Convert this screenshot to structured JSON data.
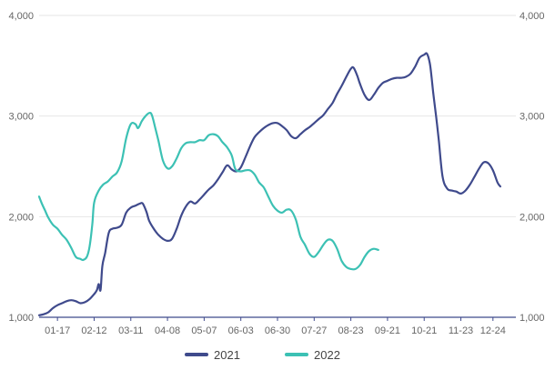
{
  "chart_data": {
    "type": "line",
    "title": "",
    "xlabel": "",
    "ylabel": "",
    "ylim": [
      1000,
      4000
    ],
    "xlim": [
      0,
      52
    ],
    "y_ticks": [
      1000,
      2000,
      3000,
      4000
    ],
    "y_tick_labels": [
      "1,000",
      "2,000",
      "3,000",
      "4,000"
    ],
    "x_ticks": [
      {
        "x": 2,
        "label": "01-17"
      },
      {
        "x": 6,
        "label": "02-12"
      },
      {
        "x": 10,
        "label": "03-11"
      },
      {
        "x": 14,
        "label": "04-08"
      },
      {
        "x": 18,
        "label": "05-07"
      },
      {
        "x": 22,
        "label": "06-03"
      },
      {
        "x": 26,
        "label": "06-30"
      },
      {
        "x": 30,
        "label": "07-27"
      },
      {
        "x": 34,
        "label": "08-23"
      },
      {
        "x": 38,
        "label": "09-21"
      },
      {
        "x": 42,
        "label": "10-21"
      },
      {
        "x": 46,
        "label": "11-23"
      },
      {
        "x": 49.5,
        "label": "12-24"
      }
    ],
    "grid": true,
    "legend_position": "bottom",
    "dual_y_axis": true,
    "series": [
      {
        "name": "2021",
        "color": "#3f4a8c",
        "points": [
          [
            0,
            1020
          ],
          [
            0.5,
            1030
          ],
          [
            1,
            1050
          ],
          [
            1.5,
            1090
          ],
          [
            2,
            1120
          ],
          [
            2.5,
            1140
          ],
          [
            3,
            1160
          ],
          [
            3.5,
            1170
          ],
          [
            4,
            1160
          ],
          [
            4.5,
            1140
          ],
          [
            5,
            1150
          ],
          [
            5.5,
            1180
          ],
          [
            6,
            1230
          ],
          [
            6.3,
            1270
          ],
          [
            6.5,
            1330
          ],
          [
            6.7,
            1270
          ],
          [
            6.9,
            1510
          ],
          [
            7.2,
            1640
          ],
          [
            7.6,
            1840
          ],
          [
            8,
            1880
          ],
          [
            8.5,
            1890
          ],
          [
            9,
            1920
          ],
          [
            9.5,
            2040
          ],
          [
            10,
            2090
          ],
          [
            10.5,
            2110
          ],
          [
            11,
            2130
          ],
          [
            11.3,
            2130
          ],
          [
            11.7,
            2050
          ],
          [
            12,
            1960
          ],
          [
            12.5,
            1880
          ],
          [
            13,
            1820
          ],
          [
            13.5,
            1780
          ],
          [
            14,
            1760
          ],
          [
            14.5,
            1780
          ],
          [
            15,
            1880
          ],
          [
            15.5,
            2010
          ],
          [
            16,
            2100
          ],
          [
            16.5,
            2150
          ],
          [
            17,
            2130
          ],
          [
            17.5,
            2170
          ],
          [
            18,
            2220
          ],
          [
            18.5,
            2270
          ],
          [
            19,
            2310
          ],
          [
            19.5,
            2370
          ],
          [
            20,
            2440
          ],
          [
            20.5,
            2510
          ],
          [
            21,
            2470
          ],
          [
            21.5,
            2450
          ],
          [
            22,
            2490
          ],
          [
            22.5,
            2590
          ],
          [
            23,
            2700
          ],
          [
            23.5,
            2790
          ],
          [
            24,
            2840
          ],
          [
            24.5,
            2880
          ],
          [
            25,
            2910
          ],
          [
            25.5,
            2930
          ],
          [
            26,
            2930
          ],
          [
            26.5,
            2900
          ],
          [
            27,
            2860
          ],
          [
            27.5,
            2800
          ],
          [
            28,
            2780
          ],
          [
            28.5,
            2820
          ],
          [
            29,
            2860
          ],
          [
            29.5,
            2890
          ],
          [
            30,
            2930
          ],
          [
            30.5,
            2970
          ],
          [
            31,
            3010
          ],
          [
            31.5,
            3070
          ],
          [
            32,
            3130
          ],
          [
            32.5,
            3220
          ],
          [
            33,
            3300
          ],
          [
            33.5,
            3390
          ],
          [
            34,
            3470
          ],
          [
            34.3,
            3480
          ],
          [
            34.7,
            3400
          ],
          [
            35,
            3320
          ],
          [
            35.5,
            3210
          ],
          [
            36,
            3160
          ],
          [
            36.5,
            3210
          ],
          [
            37,
            3280
          ],
          [
            37.5,
            3330
          ],
          [
            38,
            3350
          ],
          [
            38.5,
            3370
          ],
          [
            39,
            3380
          ],
          [
            39.5,
            3380
          ],
          [
            40,
            3390
          ],
          [
            40.5,
            3420
          ],
          [
            41,
            3490
          ],
          [
            41.5,
            3580
          ],
          [
            42,
            3610
          ],
          [
            42.3,
            3620
          ],
          [
            42.6,
            3530
          ],
          [
            42.8,
            3390
          ],
          [
            43,
            3220
          ],
          [
            43.3,
            3000
          ],
          [
            43.6,
            2750
          ],
          [
            44,
            2400
          ],
          [
            44.5,
            2280
          ],
          [
            45,
            2260
          ],
          [
            45.5,
            2250
          ],
          [
            46,
            2230
          ],
          [
            46.5,
            2260
          ],
          [
            47,
            2320
          ],
          [
            47.5,
            2400
          ],
          [
            48,
            2480
          ],
          [
            48.5,
            2540
          ],
          [
            49,
            2530
          ],
          [
            49.5,
            2460
          ],
          [
            50,
            2340
          ],
          [
            50.3,
            2300
          ]
        ]
      },
      {
        "name": "2022",
        "color": "#3cc1b4",
        "points": [
          [
            0,
            2200
          ],
          [
            0.3,
            2130
          ],
          [
            0.7,
            2050
          ],
          [
            1,
            1990
          ],
          [
            1.5,
            1920
          ],
          [
            2,
            1880
          ],
          [
            2.5,
            1820
          ],
          [
            3,
            1770
          ],
          [
            3.5,
            1690
          ],
          [
            4,
            1600
          ],
          [
            4.5,
            1580
          ],
          [
            4.8,
            1570
          ],
          [
            5.2,
            1600
          ],
          [
            5.5,
            1700
          ],
          [
            5.8,
            1920
          ],
          [
            6,
            2140
          ],
          [
            6.5,
            2260
          ],
          [
            7,
            2320
          ],
          [
            7.5,
            2350
          ],
          [
            8,
            2400
          ],
          [
            8.5,
            2440
          ],
          [
            9,
            2550
          ],
          [
            9.5,
            2780
          ],
          [
            10,
            2920
          ],
          [
            10.5,
            2920
          ],
          [
            10.8,
            2880
          ],
          [
            11.2,
            2950
          ],
          [
            11.6,
            3000
          ],
          [
            12,
            3030
          ],
          [
            12.3,
            3010
          ],
          [
            12.7,
            2870
          ],
          [
            13,
            2760
          ],
          [
            13.5,
            2560
          ],
          [
            14,
            2480
          ],
          [
            14.5,
            2500
          ],
          [
            15,
            2580
          ],
          [
            15.5,
            2680
          ],
          [
            16,
            2730
          ],
          [
            16.5,
            2740
          ],
          [
            17,
            2740
          ],
          [
            17.5,
            2760
          ],
          [
            18,
            2760
          ],
          [
            18.5,
            2810
          ],
          [
            19,
            2820
          ],
          [
            19.5,
            2800
          ],
          [
            20,
            2740
          ],
          [
            20.5,
            2690
          ],
          [
            21,
            2610
          ],
          [
            21.3,
            2500
          ],
          [
            21.5,
            2460
          ],
          [
            22,
            2450
          ],
          [
            22.5,
            2460
          ],
          [
            23,
            2460
          ],
          [
            23.5,
            2420
          ],
          [
            24,
            2340
          ],
          [
            24.5,
            2290
          ],
          [
            25,
            2200
          ],
          [
            25.5,
            2110
          ],
          [
            26,
            2060
          ],
          [
            26.5,
            2040
          ],
          [
            27,
            2070
          ],
          [
            27.5,
            2060
          ],
          [
            28,
            1970
          ],
          [
            28.5,
            1800
          ],
          [
            29,
            1720
          ],
          [
            29.5,
            1630
          ],
          [
            30,
            1600
          ],
          [
            30.5,
            1650
          ],
          [
            31,
            1720
          ],
          [
            31.5,
            1770
          ],
          [
            32,
            1760
          ],
          [
            32.5,
            1680
          ],
          [
            33,
            1560
          ],
          [
            33.5,
            1500
          ],
          [
            34,
            1480
          ],
          [
            34.5,
            1480
          ],
          [
            35,
            1520
          ],
          [
            35.5,
            1600
          ],
          [
            36,
            1660
          ],
          [
            36.5,
            1680
          ],
          [
            37,
            1670
          ]
        ]
      }
    ]
  }
}
